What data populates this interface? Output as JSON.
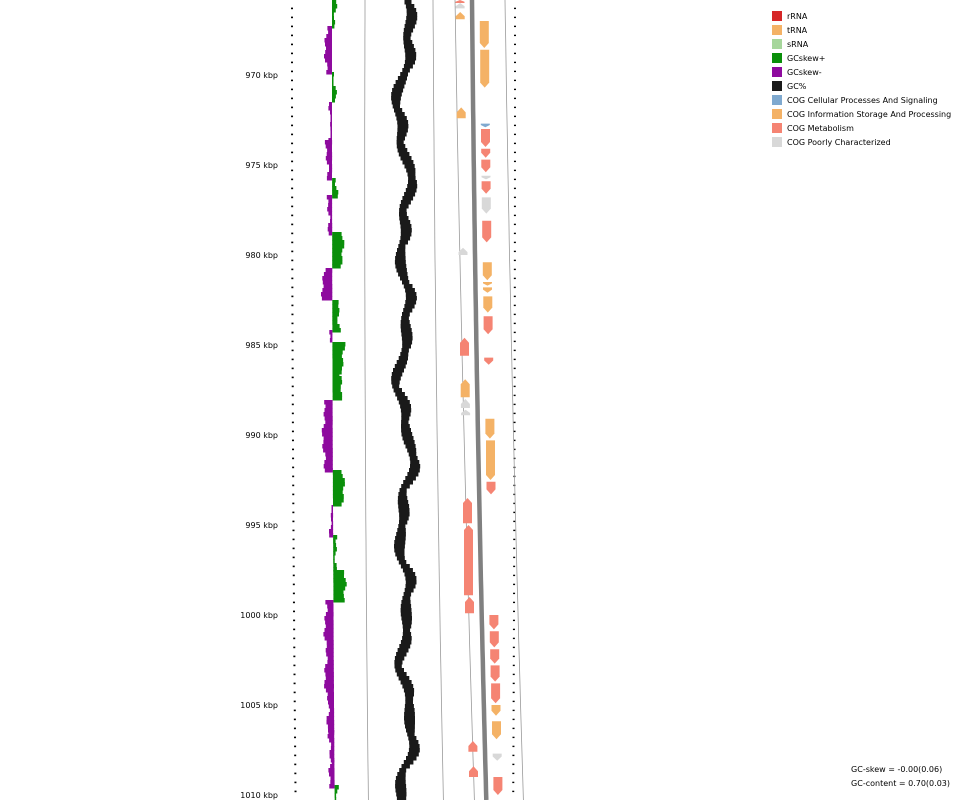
{
  "chart_data": {
    "type": "genome-map",
    "axis": {
      "unit": "kbp",
      "range": [
        965.8,
        1010
      ],
      "tick_labels": [
        "970 kbp",
        "975 kbp",
        "980 kbp",
        "985 kbp",
        "990 kbp",
        "995 kbp",
        "1000 kbp",
        "1005 kbp",
        "1010 kbp"
      ],
      "tick_values": [
        970,
        975,
        980,
        985,
        990,
        995,
        1000,
        1005,
        1010
      ]
    },
    "legend": [
      {
        "label": "rRNA",
        "color": "#d62728"
      },
      {
        "label": "tRNA",
        "color": "#f4b266"
      },
      {
        "label": "sRNA",
        "color": "#a6d69b"
      },
      {
        "label": "GCskew+",
        "color": "#0a8f0a"
      },
      {
        "label": "GCskew-",
        "color": "#8e0a9e"
      },
      {
        "label": "GC%",
        "color": "#1a1a1a"
      },
      {
        "label": "COG Cellular Processes And Signaling",
        "color": "#7fa9cf"
      },
      {
        "label": "COG Information Storage And Processing",
        "color": "#f4b266"
      },
      {
        "label": "COG Metabolism",
        "color": "#f58473"
      },
      {
        "label": "COG Poorly Characterized",
        "color": "#d8d8d8"
      }
    ],
    "stats": {
      "gc_skew": "GC-skew = -0.00(0.06)",
      "gc_content": "GC-content = 0.70(0.03)"
    },
    "features": [
      {
        "strand": "-",
        "start": 965.8,
        "end": 966.0,
        "cog": "COG Metabolism"
      },
      {
        "strand": "-",
        "start": 966.0,
        "end": 966.3,
        "cog": "COG Poorly Characterized"
      },
      {
        "strand": "-",
        "start": 966.5,
        "end": 966.9,
        "cog": "COG Information Storage And Processing"
      },
      {
        "strand": "+",
        "start": 967.0,
        "end": 968.5,
        "cog": "COG Information Storage And Processing"
      },
      {
        "strand": "+",
        "start": 968.6,
        "end": 970.7,
        "cog": "COG Information Storage And Processing"
      },
      {
        "strand": "-",
        "start": 971.8,
        "end": 972.4,
        "cog": "COG Information Storage And Processing"
      },
      {
        "strand": "+",
        "start": 972.7,
        "end": 972.9,
        "cog": "COG Cellular Processes And Signaling"
      },
      {
        "strand": "+",
        "start": 973.0,
        "end": 974.0,
        "cog": "COG Metabolism"
      },
      {
        "strand": "+",
        "start": 974.1,
        "end": 974.6,
        "cog": "COG Metabolism"
      },
      {
        "strand": "+",
        "start": 974.7,
        "end": 975.4,
        "cog": "COG Metabolism"
      },
      {
        "strand": "+",
        "start": 975.6,
        "end": 975.8,
        "cog": "COG Poorly Characterized"
      },
      {
        "strand": "+",
        "start": 975.9,
        "end": 976.6,
        "cog": "COG Metabolism"
      },
      {
        "strand": "+",
        "start": 976.8,
        "end": 977.7,
        "cog": "COG Poorly Characterized"
      },
      {
        "strand": "+",
        "start": 978.1,
        "end": 979.3,
        "cog": "COG Metabolism"
      },
      {
        "strand": "-",
        "start": 979.6,
        "end": 980.0,
        "cog": "COG Poorly Characterized"
      },
      {
        "strand": "+",
        "start": 980.4,
        "end": 981.4,
        "cog": "COG Information Storage And Processing"
      },
      {
        "strand": "+",
        "start": 981.5,
        "end": 981.7,
        "cog": "COG Information Storage And Processing"
      },
      {
        "strand": "+",
        "start": 981.8,
        "end": 982.1,
        "cog": "COG Information Storage And Processing"
      },
      {
        "strand": "+",
        "start": 982.3,
        "end": 983.2,
        "cog": "COG Information Storage And Processing"
      },
      {
        "strand": "+",
        "start": 983.4,
        "end": 984.4,
        "cog": "COG Metabolism"
      },
      {
        "strand": "-",
        "start": 984.6,
        "end": 985.6,
        "cog": "COG Metabolism"
      },
      {
        "strand": "+",
        "start": 985.7,
        "end": 986.1,
        "cog": "COG Metabolism"
      },
      {
        "strand": "-",
        "start": 986.9,
        "end": 987.9,
        "cog": "COG Information Storage And Processing"
      },
      {
        "strand": "-",
        "start": 988.0,
        "end": 988.5,
        "cog": "COG Poorly Characterized"
      },
      {
        "strand": "-",
        "start": 988.6,
        "end": 988.9,
        "cog": "COG Poorly Characterized"
      },
      {
        "strand": "+",
        "start": 989.1,
        "end": 990.2,
        "cog": "COG Information Storage And Processing"
      },
      {
        "strand": "+",
        "start": 990.3,
        "end": 992.5,
        "cog": "COG Information Storage And Processing"
      },
      {
        "strand": "+",
        "start": 992.6,
        "end": 993.3,
        "cog": "COG Metabolism"
      },
      {
        "strand": "-",
        "start": 993.5,
        "end": 994.9,
        "cog": "COG Metabolism"
      },
      {
        "strand": "-",
        "start": 995.0,
        "end": 998.9,
        "cog": "COG Metabolism"
      },
      {
        "strand": "-",
        "start": 999.0,
        "end": 999.9,
        "cog": "COG Metabolism"
      },
      {
        "strand": "+",
        "start": 1000.0,
        "end": 1000.8,
        "cog": "COG Metabolism"
      },
      {
        "strand": "+",
        "start": 1000.9,
        "end": 1001.8,
        "cog": "COG Metabolism"
      },
      {
        "strand": "+",
        "start": 1001.9,
        "end": 1002.7,
        "cog": "COG Metabolism"
      },
      {
        "strand": "+",
        "start": 1002.8,
        "end": 1003.7,
        "cog": "COG Metabolism"
      },
      {
        "strand": "+",
        "start": 1003.8,
        "end": 1004.9,
        "cog": "COG Metabolism"
      },
      {
        "strand": "+",
        "start": 1005.0,
        "end": 1005.6,
        "cog": "COG Information Storage And Processing"
      },
      {
        "strand": "+",
        "start": 1005.9,
        "end": 1006.9,
        "cog": "COG Information Storage And Processing"
      },
      {
        "strand": "-",
        "start": 1007.0,
        "end": 1007.6,
        "cog": "COG Metabolism"
      },
      {
        "strand": "+",
        "start": 1007.7,
        "end": 1008.1,
        "cog": "COG Poorly Characterized"
      },
      {
        "strand": "-",
        "start": 1008.4,
        "end": 1009.0,
        "cog": "COG Metabolism"
      },
      {
        "strand": "+",
        "start": 1009.0,
        "end": 1010.0,
        "cog": "COG Metabolism"
      }
    ]
  }
}
